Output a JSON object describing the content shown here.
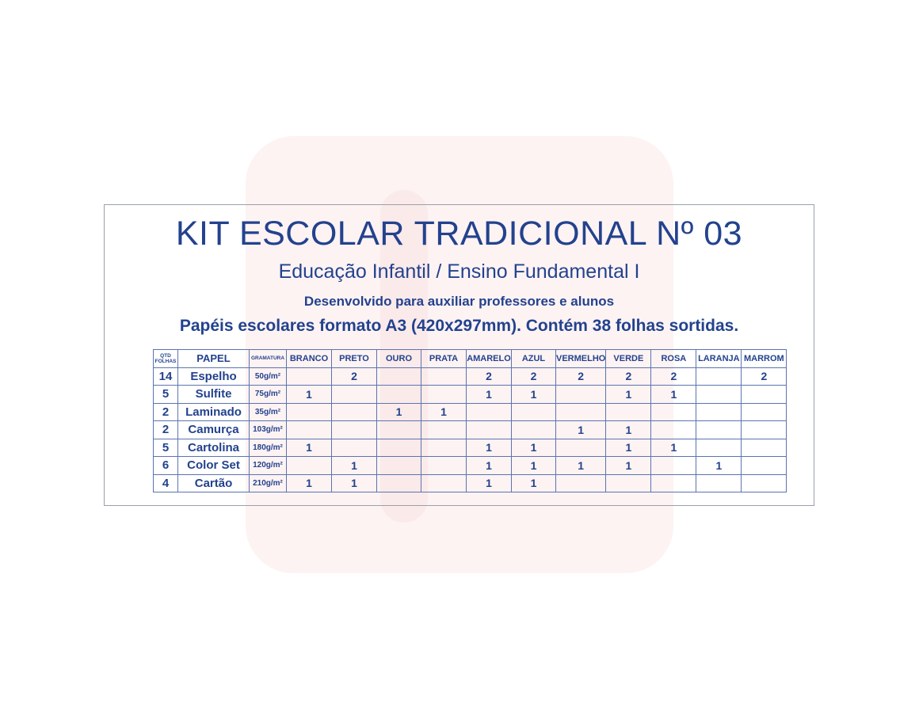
{
  "title": "KIT ESCOLAR TRADICIONAL Nº 03",
  "subtitle": "Educação Infantil / Ensino Fundamental I",
  "tagline": "Desenvolvido para auxiliar professores e alunos",
  "description": "Papéis escolares formato A3 (420x297mm). Contém 38 folhas sortidas.",
  "table": {
    "headers": [
      "QTD FOLHAS",
      "PAPEL",
      "GRAMATURA",
      "BRANCO",
      "PRETO",
      "OURO",
      "PRATA",
      "AMARELO",
      "AZUL",
      "VERMELHO",
      "VERDE",
      "ROSA",
      "LARANJA",
      "MARROM"
    ],
    "rows": [
      [
        "14",
        "Espelho",
        "50g/m²",
        "",
        "2",
        "",
        "",
        "2",
        "2",
        "2",
        "2",
        "2",
        "",
        "2"
      ],
      [
        "5",
        "Sulfite",
        "75g/m²",
        "1",
        "",
        "",
        "",
        "1",
        "1",
        "",
        "1",
        "1",
        "",
        ""
      ],
      [
        "2",
        "Laminado",
        "35g/m²",
        "",
        "",
        "1",
        "1",
        "",
        "",
        "",
        "",
        "",
        "",
        ""
      ],
      [
        "2",
        "Camurça",
        "103g/m²",
        "",
        "",
        "",
        "",
        "",
        "",
        "1",
        "1",
        "",
        "",
        ""
      ],
      [
        "5",
        "Cartolina",
        "180g/m²",
        "1",
        "",
        "",
        "",
        "1",
        "1",
        "",
        "1",
        "1",
        "",
        ""
      ],
      [
        "6",
        "Color Set",
        "120g/m²",
        "",
        "1",
        "",
        "",
        "1",
        "1",
        "1",
        "1",
        "",
        "1",
        ""
      ],
      [
        "4",
        "Cartão",
        "210g/m²",
        "1",
        "1",
        "",
        "",
        "1",
        "1",
        "",
        "",
        "",
        "",
        ""
      ]
    ]
  },
  "colors": {
    "text": "#23428e",
    "grid": "#5b74b0"
  }
}
